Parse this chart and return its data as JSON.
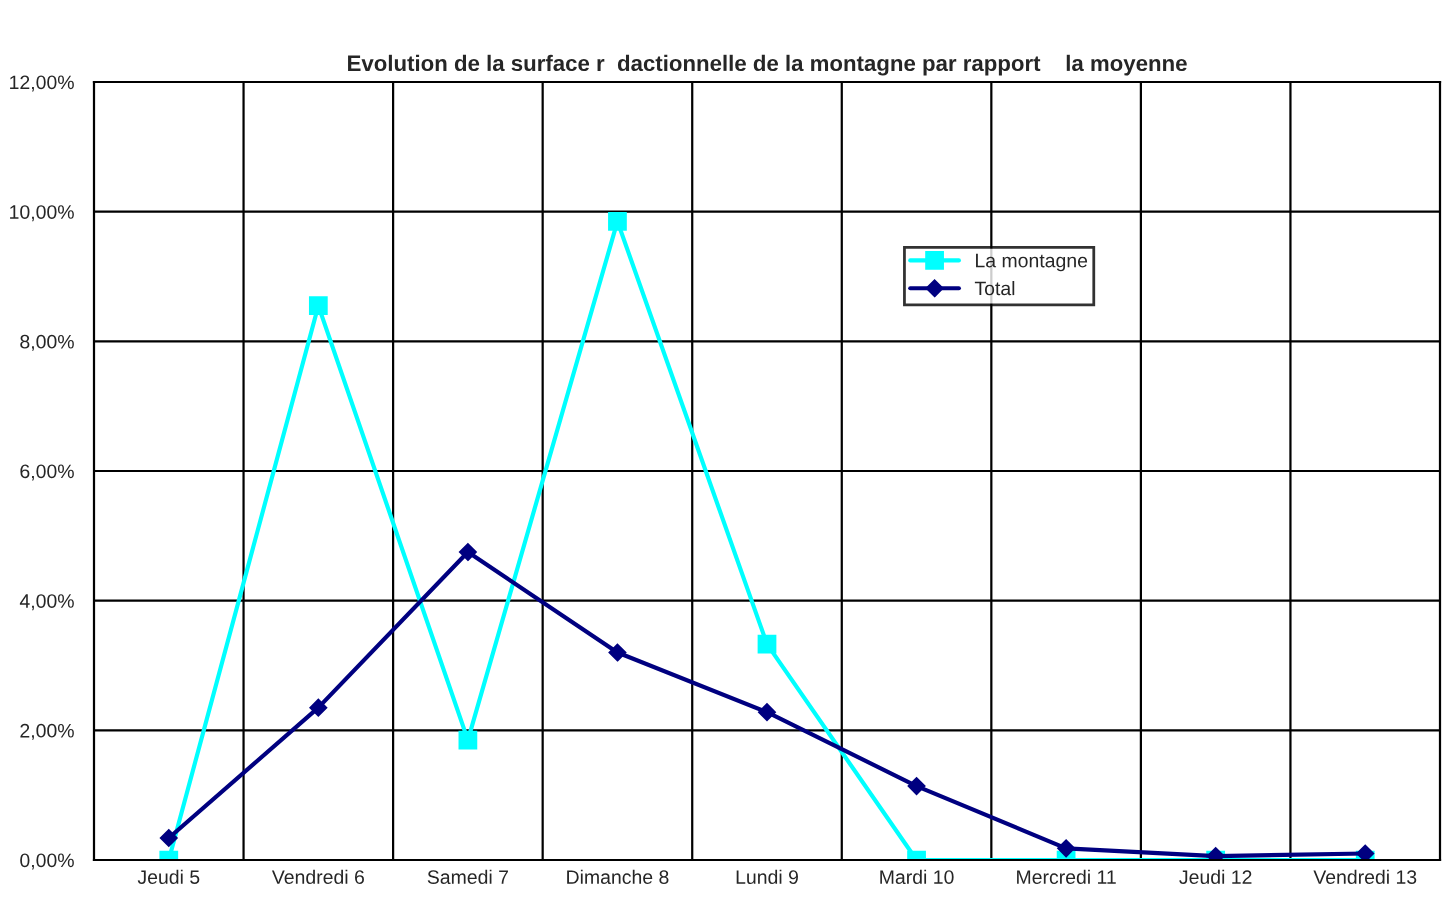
{
  "chart_data": {
    "type": "line",
    "title": "Evolution de la surface r  dactionnelle de la montagne par rapport    la moyenne",
    "categories": [
      "Jeudi 5",
      "Vendredi 6",
      "Samedi 7",
      "Dimanche 8",
      "Lundi 9",
      "Mardi 10",
      "Mercredi 11",
      "Jeudi 12",
      "Vendredi 13"
    ],
    "series": [
      {
        "name": "La montagne",
        "color": "#00ffff",
        "marker": "square",
        "values": [
          0,
          8.55,
          1.85,
          9.85,
          3.33,
          0,
          0,
          0,
          0
        ]
      },
      {
        "name": "Total",
        "color": "#000080",
        "marker": "diamond",
        "values": [
          0.34,
          2.35,
          4.75,
          3.2,
          2.28,
          1.14,
          0.18,
          0.06,
          0.1
        ]
      }
    ],
    "ylim": [
      0,
      12
    ],
    "yticks": [
      {
        "value": 0,
        "label": "0,00%"
      },
      {
        "value": 2,
        "label": "2,00%"
      },
      {
        "value": 4,
        "label": "4,00%"
      },
      {
        "value": 6,
        "label": "6,00%"
      },
      {
        "value": 8,
        "label": "8,00%"
      },
      {
        "value": 10,
        "label": "10,00%"
      },
      {
        "value": 12,
        "label": "12,00%"
      }
    ],
    "grid": true,
    "legend": "top right",
    "line_style": "solid"
  }
}
